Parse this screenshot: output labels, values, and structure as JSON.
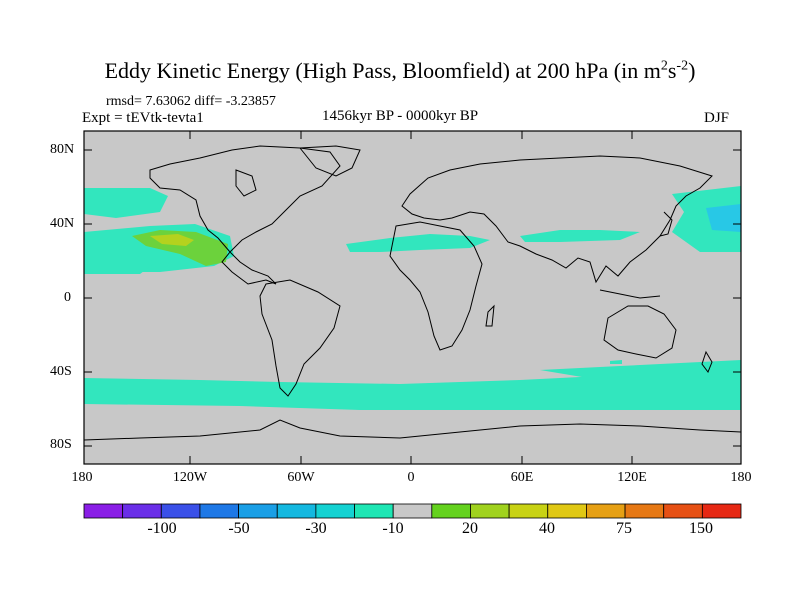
{
  "title_main": "Eddy Kinetic Energy (High Pass, Bloomfield) at 200 hPa (in m",
  "title_sup1": "2",
  "title_s": "s",
  "title_sup2": "-2",
  "title_close": ")",
  "stats": "rmsd= 7.63062 diff= -3.23857",
  "experiment": "Expt = tEVtk-tevta1",
  "period": "1456kyr BP - 0000kyr BP",
  "season": "DJF",
  "lat_labels": [
    "80N",
    "40N",
    "0",
    "40S",
    "80S"
  ],
  "lon_labels": [
    "180",
    "120W",
    "60W",
    "0",
    "60E",
    "120E",
    "180"
  ],
  "colorbar": {
    "labels": [
      "-100",
      "-50",
      "-30",
      "-10",
      "20",
      "40",
      "75",
      "150"
    ],
    "colors": [
      "#8a1ee6",
      "#6a2ee8",
      "#3a50e8",
      "#1e78e6",
      "#1a9fe6",
      "#14b8e0",
      "#14d2d2",
      "#1ee6b4",
      "#c8c8c8",
      "#64d21e",
      "#a0d21e",
      "#c8d214",
      "#e0c814",
      "#e6a014",
      "#e67814",
      "#e65014",
      "#e62814"
    ]
  },
  "colors": {
    "land_ocean": "#c8c8c8",
    "cyan": "#32e6be",
    "light_blue": "#28c8e6",
    "green": "#6cd23c",
    "yellow_green": "#b4d21e"
  }
}
